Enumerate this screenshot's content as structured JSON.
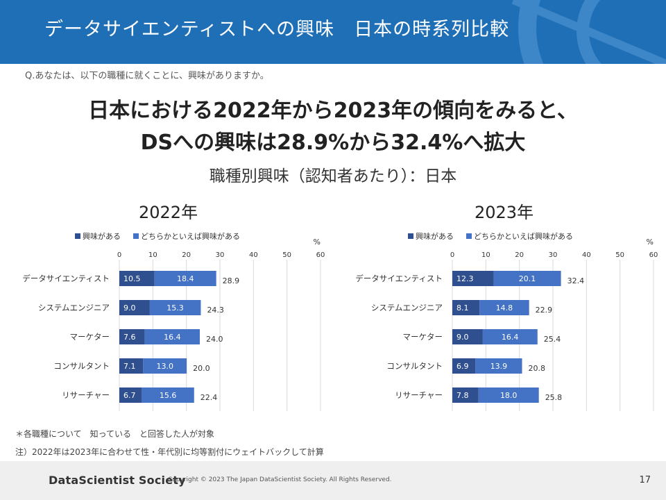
{
  "header": {
    "title": "データサイエンティストへの興味　日本の時系列比較"
  },
  "question": "Q.あなたは、以下の職種に就くことに、興味がありますか。",
  "headline": {
    "line1": "日本における2022年から2023年の傾向をみると、",
    "line2": "DSへの興味は28.9%から32.4%へ拡大"
  },
  "subtitle": "職種別興味（認知者あたり）：日本",
  "colors": {
    "header": "#1f6fb6",
    "interested": "#2f4f8f",
    "somewhat": "#4472c4",
    "grid": "#d9d9d9"
  },
  "chart_data": [
    {
      "type": "bar",
      "orientation": "horizontal",
      "stacked": true,
      "title": "2022年",
      "unit": "%",
      "xlim": [
        0,
        60
      ],
      "ticks": [
        0,
        10,
        20,
        30,
        40,
        50,
        60
      ],
      "categories": [
        "データサイエンティスト",
        "システムエンジニア",
        "マーケター",
        "コンサルタント",
        "リサーチャー"
      ],
      "series": [
        {
          "name": "興味がある",
          "values": [
            10.5,
            9.0,
            7.6,
            7.1,
            6.7
          ]
        },
        {
          "name": "どちらかといえば興味がある",
          "values": [
            18.4,
            15.3,
            16.4,
            13.0,
            15.6
          ]
        }
      ],
      "totals": [
        28.9,
        24.3,
        24.0,
        20.0,
        22.4
      ],
      "legend": "top-left",
      "grid": true
    },
    {
      "type": "bar",
      "orientation": "horizontal",
      "stacked": true,
      "title": "2023年",
      "unit": "%",
      "xlim": [
        0,
        60
      ],
      "ticks": [
        0,
        10,
        20,
        30,
        40,
        50,
        60
      ],
      "categories": [
        "データサイエンティスト",
        "システムエンジニア",
        "マーケター",
        "コンサルタント",
        "リサーチャー"
      ],
      "series": [
        {
          "name": "興味がある",
          "values": [
            12.3,
            8.1,
            9.0,
            6.9,
            7.8
          ]
        },
        {
          "name": "どちらかといえば興味がある",
          "values": [
            20.1,
            14.8,
            16.4,
            13.9,
            18.0
          ]
        }
      ],
      "totals": [
        32.4,
        22.9,
        25.4,
        20.8,
        25.8
      ],
      "legend": "top-left",
      "grid": true
    }
  ],
  "notes": [
    "＊各職種について　知っている　と回答した人が対象",
    "注）2022年は2023年に合わせて性・年代別に均等割付にウェイトバックして計算"
  ],
  "footer": {
    "logo": "DataScientist Society",
    "copyright": "Copyright © 2023 The Japan DataScientist Society. All Rights Reserved.",
    "page": "17"
  }
}
